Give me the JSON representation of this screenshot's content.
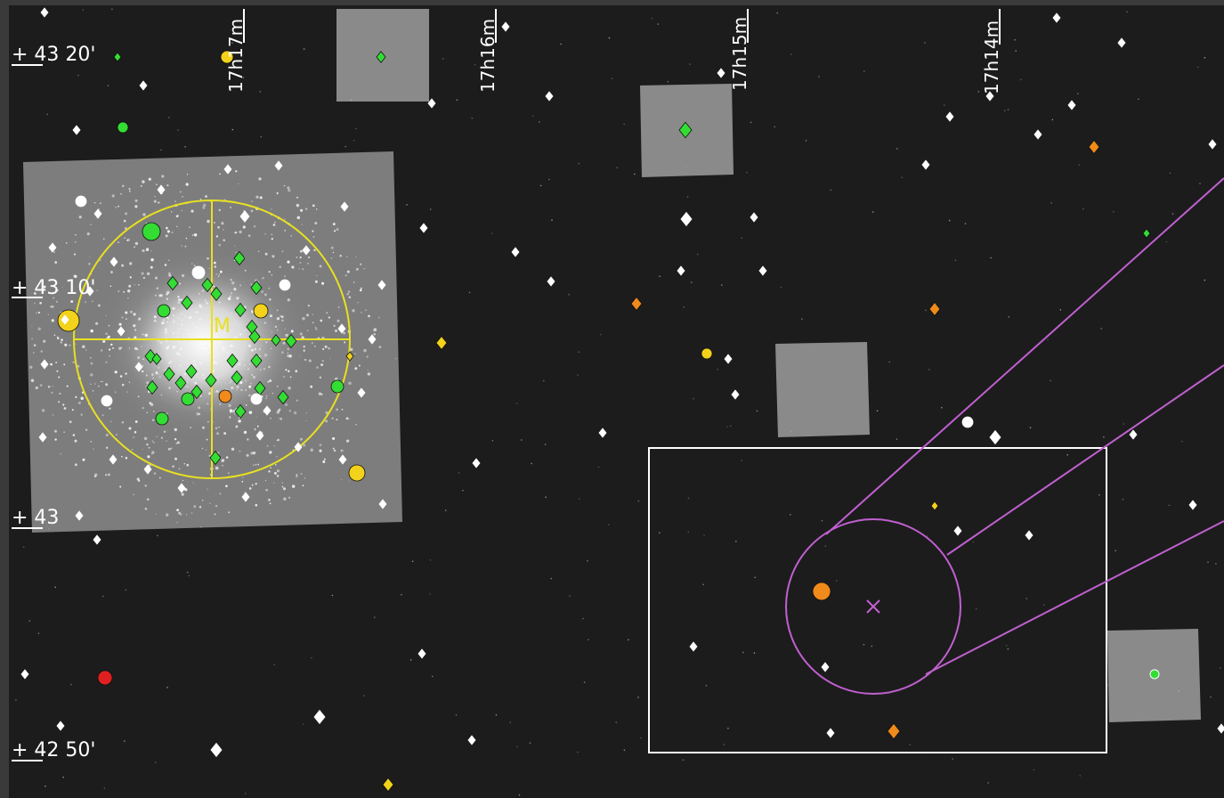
{
  "chart": {
    "dec_labels": [
      "+ 43 20'",
      "+ 43 10'",
      "+ 43",
      "+ 42 50'"
    ],
    "ra_labels": [
      "17h17m",
      "17h16m",
      "17h15m",
      "17h14m"
    ],
    "object_label": "M"
  },
  "colors": {
    "sky": "#1c1c1c",
    "frame": "#3a3a3a",
    "overlay_circle": "#e8e020",
    "trail": "#c060d0",
    "fov_box": "#ffffff",
    "star_white": "#ffffff",
    "star_green": "#33dd33",
    "star_yellow": "#f2d21a",
    "star_orange": "#f08a1a",
    "star_red": "#e02020"
  },
  "icons": {
    "stars": "star-marker-icon",
    "target": "target-cross-icon"
  }
}
